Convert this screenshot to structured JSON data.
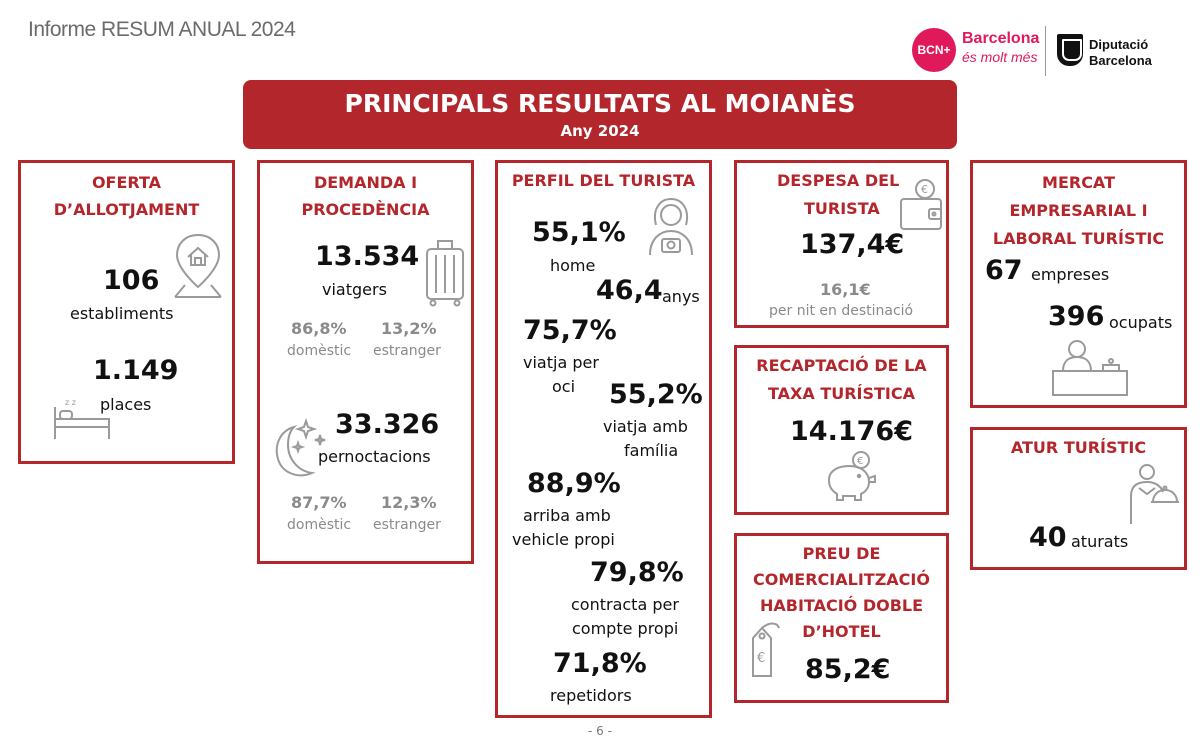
{
  "header": {
    "report_title": "Informe RESUM ANUAL 2024",
    "logo_bcn_badge": "BCN+",
    "logo_bcn_line1": "Barcelona",
    "logo_bcn_line2": "és molt més",
    "logo_diba_line1": "Diputació",
    "logo_diba_line2": "Barcelona"
  },
  "banner": {
    "title": "PRINCIPALS RESULTATS AL MOIANÈS",
    "subtitle": "Any 2024"
  },
  "oferta": {
    "heading_l1": "OFERTA",
    "heading_l2": "D’ALLOTJAMENT",
    "establiments_value": "106",
    "establiments_label": "establiments",
    "places_value": "1.149",
    "places_label": "places"
  },
  "demanda": {
    "heading_l1": "DEMANDA I",
    "heading_l2": "PROCEDÈNCIA",
    "viatgers_value": "13.534",
    "viatgers_label": "viatgers",
    "viatgers_domestic_pct": "86,8%",
    "viatgers_domestic_label": "domèstic",
    "viatgers_foreign_pct": "13,2%",
    "viatgers_foreign_label": "estranger",
    "pernoctacions_value": "33.326",
    "pernoctacions_label": "pernoctacions",
    "pernoctacions_domestic_pct": "87,7%",
    "pernoctacions_domestic_label": "domèstic",
    "pernoctacions_foreign_pct": "12,3%",
    "pernoctacions_foreign_label": "estranger"
  },
  "perfil": {
    "heading": "PERFIL DEL TURISTA",
    "home_value": "55,1%",
    "home_label": "home",
    "age_value": "46,4",
    "age_label": "anys",
    "oci_value": "75,7%",
    "oci_label_l1": "viatja per",
    "oci_label_l2": "oci",
    "familia_value": "55,2%",
    "familia_label_l1": "viatja amb",
    "familia_label_l2": "família",
    "vehicle_value": "88,9%",
    "vehicle_label_l1": "arriba amb",
    "vehicle_label_l2": "vehicle propi",
    "propi_value": "79,8%",
    "propi_label_l1": "contracta per",
    "propi_label_l2": "compte propi",
    "repetidors_value": "71,8%",
    "repetidors_label": "repetidors"
  },
  "despesa": {
    "heading_l1": "DESPESA DEL",
    "heading_l2": "TURISTA",
    "value": "137,4€",
    "per_night_value": "16,1€",
    "per_night_label": "per nit en destinació"
  },
  "taxa": {
    "heading_l1": "RECAPTACIÓ DE LA",
    "heading_l2": "TAXA TURÍSTICA",
    "value": "14.176€"
  },
  "preu": {
    "heading_l1": "PREU DE",
    "heading_l2": "COMERCIALITZACIÓ",
    "heading_l3": "HABITACIÓ DOBLE",
    "heading_l4": "D’HOTEL",
    "value": "85,2€"
  },
  "mercat": {
    "heading_l1": "MERCAT",
    "heading_l2": "EMPRESARIAL I",
    "heading_l3": "LABORAL TURÍSTIC",
    "empreses_value": "67",
    "empreses_label": "empreses",
    "ocupats_value": "396",
    "ocupats_label": "ocupats"
  },
  "atur": {
    "heading": "ATUR TURÍSTIC",
    "value": "40",
    "label": "aturats"
  },
  "footer": {
    "page_number": "- 6 -"
  },
  "colors": {
    "accent": "#b3262b",
    "grey_text": "#8a8a8a",
    "brand_pink": "#e0195b"
  }
}
